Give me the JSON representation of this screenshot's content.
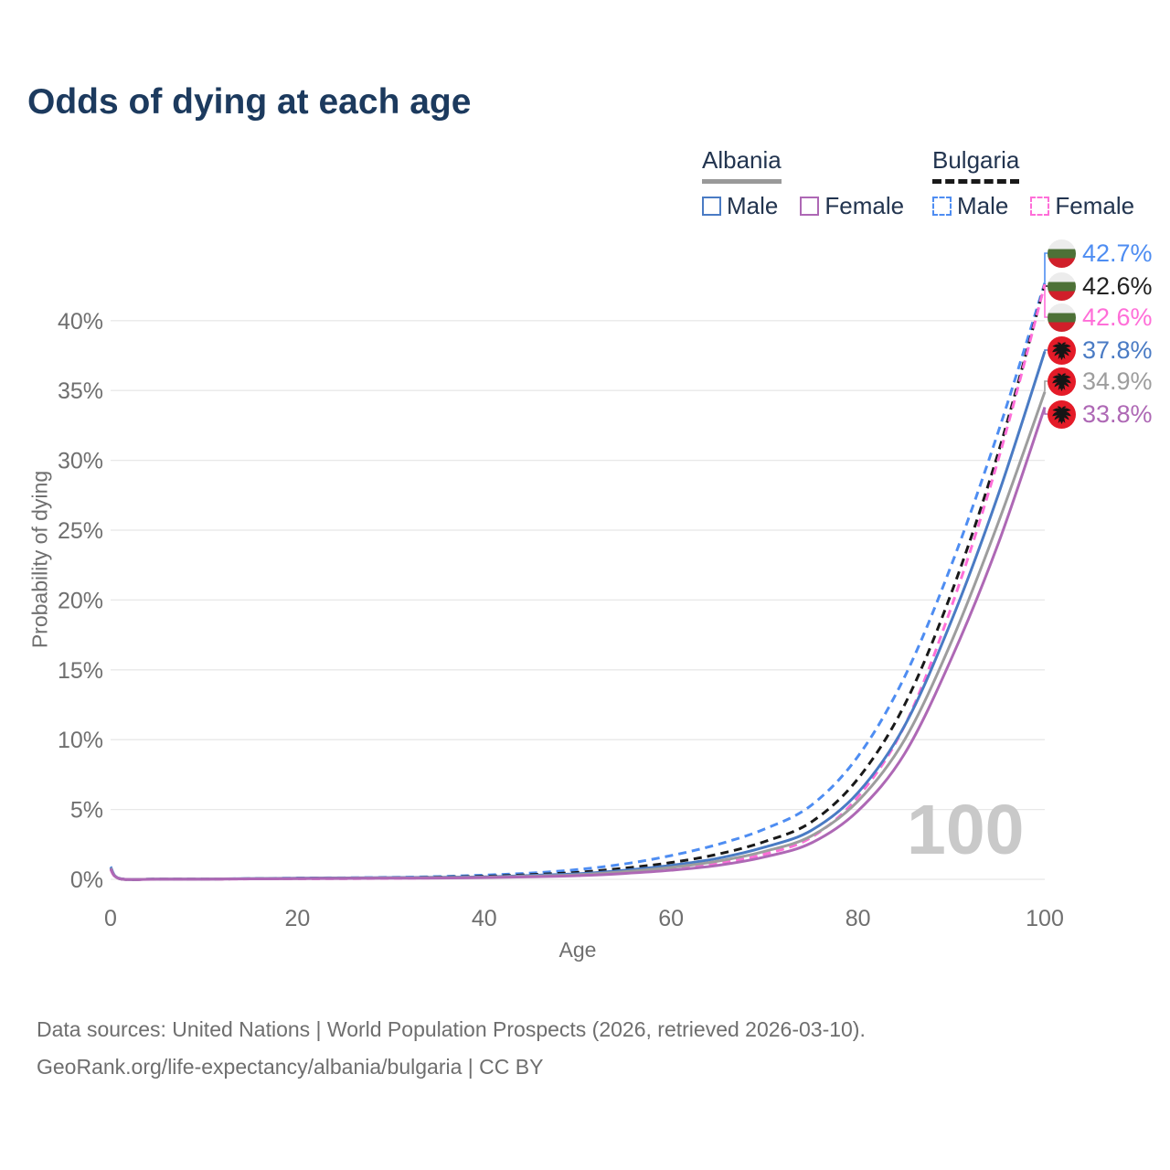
{
  "title": "Odds of dying at each age",
  "legend": {
    "groups": [
      {
        "country": "Albania",
        "underline_style": "solid",
        "underline_color": "#999999",
        "items": [
          {
            "label": "Male",
            "color": "#4a7bc4",
            "dashed": false
          },
          {
            "label": "Female",
            "color": "#ae68b5",
            "dashed": false
          }
        ]
      },
      {
        "country": "Bulgaria",
        "underline_style": "dashed",
        "underline_color": "#191919",
        "items": [
          {
            "label": "Male",
            "color": "#4e8df2",
            "dashed": true
          },
          {
            "label": "Female",
            "color": "#ff6ed8",
            "dashed": true
          }
        ]
      }
    ]
  },
  "watermark": "100",
  "footer": {
    "line1": "Data sources: United Nations | World Population Prospects (2026, retrieved 2026-03-10).",
    "line2": "GeoRank.org/life-expectancy/albania/bulgaria | CC BY"
  },
  "chart_data": {
    "type": "line",
    "title": "Odds of dying at each age",
    "xlabel": "Age",
    "ylabel": "Probability of dying",
    "xlim": [
      0,
      100
    ],
    "ylim": [
      0,
      44
    ],
    "xticks": [
      0,
      20,
      40,
      60,
      80,
      100
    ],
    "yticks": [
      0,
      5,
      10,
      15,
      20,
      25,
      30,
      35,
      40
    ],
    "ytick_suffix": "%",
    "grid": "horizontal-only",
    "legend_position": "top-right",
    "x": [
      0,
      1,
      5,
      10,
      15,
      20,
      25,
      30,
      35,
      40,
      45,
      50,
      55,
      60,
      65,
      70,
      75,
      80,
      85,
      90,
      95,
      100
    ],
    "series": [
      {
        "name": "Bulgaria Male",
        "country": "Bulgaria",
        "sex": "male",
        "flag_icon": "bulgaria-flag",
        "color": "#4e8df2",
        "dash": "9 6",
        "end_label": "42.7%",
        "end_value": 42.7,
        "values": [
          0.9,
          0.05,
          0.02,
          0.02,
          0.05,
          0.09,
          0.11,
          0.14,
          0.2,
          0.3,
          0.45,
          0.7,
          1.1,
          1.7,
          2.5,
          3.6,
          5.3,
          8.8,
          14.5,
          22.5,
          32.0,
          42.7
        ]
      },
      {
        "name": "Bulgaria Both sexes",
        "country": "Bulgaria",
        "sex": "both",
        "flag_icon": "bulgaria-flag",
        "color": "#191919",
        "dash": "9 6",
        "end_label": "42.6%",
        "end_value": 42.6,
        "values": [
          0.8,
          0.04,
          0.02,
          0.02,
          0.04,
          0.07,
          0.09,
          0.11,
          0.16,
          0.22,
          0.34,
          0.5,
          0.8,
          1.2,
          1.8,
          2.7,
          4.1,
          7.2,
          12.5,
          20.5,
          30.5,
          42.6
        ]
      },
      {
        "name": "Bulgaria Female",
        "country": "Bulgaria",
        "sex": "female",
        "flag_icon": "bulgaria-flag",
        "color": "#ff6ed8",
        "dash": "9 6",
        "end_label": "42.6%",
        "end_value": 42.6,
        "values": [
          0.7,
          0.04,
          0.01,
          0.01,
          0.03,
          0.04,
          0.05,
          0.07,
          0.1,
          0.15,
          0.22,
          0.32,
          0.5,
          0.75,
          1.15,
          1.8,
          3.0,
          5.9,
          11.0,
          19.5,
          30.0,
          42.6
        ]
      },
      {
        "name": "Albania Male",
        "country": "Albania",
        "sex": "male",
        "flag_icon": "albania-flag",
        "color": "#4a7bc4",
        "dash": "",
        "end_label": "37.8%",
        "end_value": 37.8,
        "values": [
          0.85,
          0.05,
          0.02,
          0.02,
          0.05,
          0.08,
          0.1,
          0.12,
          0.15,
          0.18,
          0.28,
          0.4,
          0.65,
          1.0,
          1.5,
          2.3,
          3.5,
          6.2,
          11.0,
          18.5,
          27.5,
          37.8
        ]
      },
      {
        "name": "Albania Both sexes",
        "country": "Albania",
        "sex": "both",
        "flag_icon": "albania-flag",
        "color": "#9d9d9d",
        "dash": "",
        "end_label": "34.9%",
        "end_value": 34.9,
        "values": [
          0.8,
          0.04,
          0.02,
          0.02,
          0.04,
          0.06,
          0.08,
          0.1,
          0.12,
          0.15,
          0.23,
          0.33,
          0.55,
          0.85,
          1.3,
          2.0,
          3.1,
          5.6,
          10.0,
          17.0,
          25.5,
          34.9
        ]
      },
      {
        "name": "Albania Female",
        "country": "Albania",
        "sex": "female",
        "flag_icon": "albania-flag",
        "color": "#ae68b5",
        "dash": "",
        "end_label": "33.8%",
        "end_value": 33.8,
        "values": [
          0.75,
          0.04,
          0.01,
          0.01,
          0.03,
          0.05,
          0.06,
          0.08,
          0.09,
          0.12,
          0.18,
          0.26,
          0.42,
          0.65,
          1.0,
          1.6,
          2.6,
          4.9,
          9.0,
          15.8,
          24.0,
          33.8
        ]
      }
    ],
    "colors": {
      "albania_male": "#4a7bc4",
      "albania_female": "#ae68b5",
      "albania_both": "#9d9d9d",
      "bulgaria_male": "#4e8df2",
      "bulgaria_female": "#ff6ed8",
      "bulgaria_both": "#191919",
      "title_text": "#1c3a5e",
      "tick_text": "#6f6f6f",
      "gridline": "#e8e8e8",
      "watermark": "#c9c9c9"
    }
  }
}
